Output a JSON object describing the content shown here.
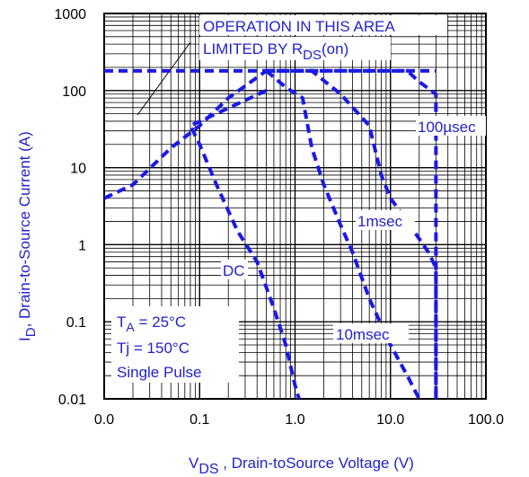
{
  "chart_data": {
    "type": "line",
    "title": "",
    "xlabel": "V",
    "xlabel_sub": "DS",
    "xlabel_rest": " , Drain-toSource Voltage (V)",
    "ylabel": "I",
    "ylabel_sub": "D",
    "ylabel_rest": ", Drain-to-Source Current (A)",
    "x_scale": "log",
    "y_scale": "log",
    "xlim": [
      0.01,
      100
    ],
    "ylim": [
      0.01,
      1000
    ],
    "x_ticks": [
      0.01,
      0.1,
      1,
      10,
      100
    ],
    "x_tick_labels": [
      "0.0",
      "0.1",
      "1.0",
      "10.0",
      "100.0"
    ],
    "y_ticks": [
      0.01,
      0.1,
      1,
      10,
      100,
      1000
    ],
    "y_tick_labels": [
      "0.01",
      "0.1",
      "1",
      "10",
      "100",
      "1000"
    ],
    "grid": true,
    "series": [
      {
        "name": "",
        "role": "rds-limit-and-envelope",
        "points": [
          [
            0.01,
            4
          ],
          [
            0.02,
            6
          ],
          [
            0.05,
            18
          ],
          [
            0.1,
            35
          ],
          [
            0.2,
            80
          ],
          [
            0.5,
            180
          ]
        ]
      },
      {
        "name": "",
        "role": "current-limit",
        "points": [
          [
            0.01,
            180
          ],
          [
            30,
            180
          ]
        ]
      },
      {
        "name": "100µsec",
        "points": [
          [
            0.5,
            180
          ],
          [
            15,
            180
          ],
          [
            20,
            130
          ],
          [
            30,
            90
          ],
          [
            30,
            0.01
          ]
        ]
      },
      {
        "name": "1msec",
        "points": [
          [
            0.5,
            180
          ],
          [
            1.5,
            180
          ],
          [
            3,
            90
          ],
          [
            6,
            35
          ],
          [
            8,
            8
          ],
          [
            10,
            4
          ],
          [
            15,
            2
          ],
          [
            25,
            0.8
          ],
          [
            30,
            0.5
          ],
          [
            30,
            0.01
          ]
        ]
      },
      {
        "name": "10msec",
        "points": [
          [
            0.5,
            180
          ],
          [
            0.8,
            110
          ],
          [
            1.2,
            80
          ],
          [
            1.5,
            18
          ],
          [
            2,
            6
          ],
          [
            3,
            1.8
          ],
          [
            4,
            0.8
          ],
          [
            6,
            0.2
          ],
          [
            10,
            0.05
          ],
          [
            15,
            0.02
          ],
          [
            20,
            0.01
          ]
        ]
      },
      {
        "name": "DC",
        "points": [
          [
            0.5,
            100
          ],
          [
            0.08,
            35
          ],
          [
            0.1,
            20
          ],
          [
            0.15,
            6
          ],
          [
            0.25,
            1.5
          ],
          [
            0.4,
            0.6
          ],
          [
            0.6,
            0.15
          ],
          [
            0.8,
            0.05
          ],
          [
            1,
            0.015
          ],
          [
            1.1,
            0.01
          ]
        ]
      }
    ],
    "annotations": {
      "rds_line1": "OPERATION IN THIS AREA",
      "rds_line2_main": "LIMITED BY R",
      "rds_line2_sub": "DS",
      "rds_line2_rest": "(on)",
      "label_100us": "100µsec",
      "label_1ms": "1msec",
      "label_10ms": "10msec",
      "label_dc": "DC",
      "cond_ta_main": "T",
      "cond_ta_sub": "A",
      "cond_ta_rest": " = 25°C",
      "cond_tj": "Tj = 150°C",
      "cond_pulse": "Single Pulse"
    },
    "colors": {
      "curve": "#1a1ae6",
      "text": "#2222cc",
      "axis": "#000000",
      "grid": "#000000"
    }
  }
}
